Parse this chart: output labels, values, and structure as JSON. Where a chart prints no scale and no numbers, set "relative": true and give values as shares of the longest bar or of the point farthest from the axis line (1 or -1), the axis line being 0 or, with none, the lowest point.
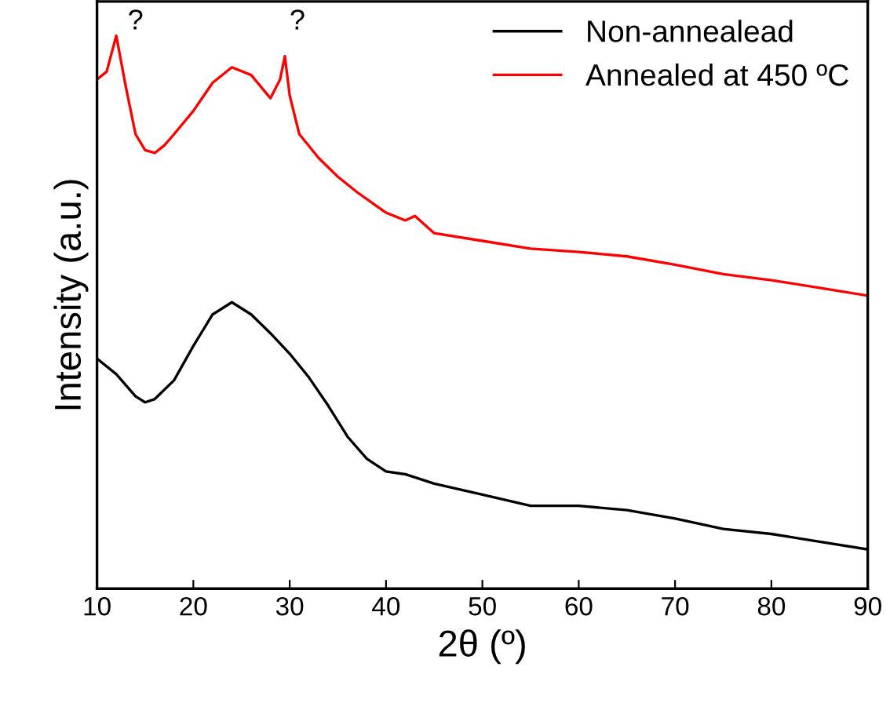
{
  "chart_data": {
    "type": "line",
    "relative": true,
    "xlabel": "2θ (º)",
    "ylabel": "Intensity (a.u.)",
    "x": [
      10,
      11,
      12,
      13,
      14,
      15,
      16,
      17,
      18,
      20,
      22,
      24,
      26,
      28,
      29,
      29.5,
      30,
      31,
      33,
      35,
      37,
      40,
      42,
      43,
      45,
      50,
      55,
      60,
      65,
      70,
      75,
      80,
      85,
      90
    ],
    "series": [
      {
        "name": "Non-annealead",
        "color": "#000000",
        "x": [
          10,
          12,
          14,
          15,
          16,
          18,
          20,
          22,
          24,
          26,
          28,
          30,
          32,
          34,
          36,
          38,
          40,
          42,
          45,
          50,
          55,
          60,
          65,
          70,
          75,
          80,
          85,
          90
        ],
        "values": [
          0.416,
          0.388,
          0.348,
          0.337,
          0.343,
          0.377,
          0.439,
          0.496,
          0.518,
          0.496,
          0.462,
          0.425,
          0.382,
          0.331,
          0.275,
          0.235,
          0.212,
          0.207,
          0.19,
          0.17,
          0.15,
          0.15,
          0.142,
          0.127,
          0.108,
          0.099,
          0.085,
          0.071
        ]
      },
      {
        "name": "Annealed at 450 ºC",
        "color": "#ff0000",
        "values": [
          0.921,
          0.935,
          1.0,
          0.907,
          0.822,
          0.793,
          0.788,
          0.802,
          0.822,
          0.864,
          0.915,
          0.943,
          0.929,
          0.887,
          0.921,
          0.963,
          0.892,
          0.822,
          0.779,
          0.745,
          0.717,
          0.68,
          0.666,
          0.674,
          0.643,
          0.629,
          0.615,
          0.609,
          0.601,
          0.586,
          0.569,
          0.558,
          0.544,
          0.53
        ]
      }
    ],
    "annotations": [
      "?",
      "?"
    ],
    "xlim": [
      10,
      90
    ],
    "xticks": [
      10,
      20,
      30,
      40,
      50,
      60,
      70,
      80,
      90
    ],
    "tick_labels": "x",
    "legend": "top right",
    "grid": false
  }
}
